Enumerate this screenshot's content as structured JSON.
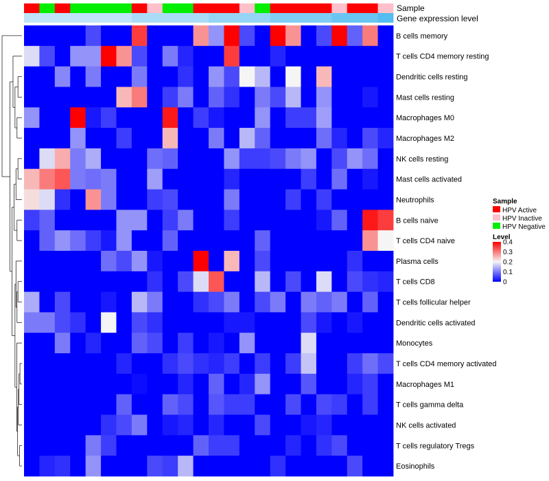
{
  "chart_data": {
    "type": "heatmap",
    "annotation_labels": [
      "Sample",
      "Gene expression level"
    ],
    "rows": [
      "B cells memory",
      "T cells CD4 memory resting",
      "Dendritic cells resting",
      "Mast cells resting",
      "Macrophages M0",
      "Macrophages M2",
      "NK cells resting",
      "Mast cells activated",
      "Neutrophils",
      "B cells naive",
      "T cells CD4 naive",
      "Plasma cells",
      "T cells CD8",
      "T cells follicular helper",
      "Dendritic cells activated",
      "Monocytes",
      "T cells CD4 memory activated",
      "Macrophages M1",
      "T cells gamma delta",
      "NK cells activated",
      "T cells regulatory  Tregs",
      "Eosinophils"
    ],
    "sample_groups": [
      "HPV Active",
      "HPV Negative",
      "HPV Active",
      "HPV Negative",
      "HPV Negative",
      "HPV Negative",
      "HPV Negative",
      "HPV Active",
      "HPV Inactive",
      "HPV Negative",
      "HPV Negative",
      "HPV Active",
      "HPV Active",
      "HPV Active",
      "HPV Inactive",
      "HPV Negative",
      "HPV Active",
      "HPV Active",
      "HPV Active",
      "HPV Active",
      "HPV Inactive",
      "HPV Active",
      "HPV Active",
      "HPV Inactive"
    ],
    "expression_level": [
      0.3,
      0.3,
      0.3,
      0.3,
      0.3,
      0.3,
      0.3,
      0.4,
      0.4,
      0.4,
      0.4,
      0.4,
      0.5,
      0.5,
      0.5,
      0.5,
      0.6,
      0.6,
      0.6,
      0.6,
      0.7,
      0.7,
      0.7,
      0.8
    ],
    "values": [
      [
        0.0,
        0.0,
        0.0,
        0.0,
        0.06,
        0.0,
        0.0,
        0.35,
        0.0,
        0.0,
        0.0,
        0.28,
        0.12,
        0.4,
        0.06,
        0.0,
        0.4,
        0.28,
        0.0,
        0.06,
        0.4,
        0.08,
        0.3,
        0.0
      ],
      [
        0.18,
        0.06,
        0.0,
        0.12,
        0.12,
        0.4,
        0.28,
        0.06,
        0.0,
        0.1,
        0.03,
        0.0,
        0.0,
        0.35,
        0.0,
        0.0,
        0.03,
        0.0,
        0.0,
        0.0,
        0.0,
        0.0,
        0.0,
        0.0
      ],
      [
        0.0,
        0.0,
        0.11,
        0.0,
        0.1,
        0.0,
        0.0,
        0.1,
        0.0,
        0.0,
        0.04,
        0.0,
        0.12,
        0.06,
        0.2,
        0.15,
        0.0,
        0.2,
        0.0,
        0.25,
        0.0,
        0.0,
        0.0,
        0.0
      ],
      [
        0.0,
        0.0,
        0.0,
        0.0,
        0.0,
        0.0,
        0.25,
        0.3,
        0.0,
        0.05,
        0.1,
        0.0,
        0.08,
        0.04,
        0.0,
        0.1,
        0.06,
        0.15,
        0.0,
        0.12,
        0.0,
        0.0,
        0.02,
        0.0
      ],
      [
        0.12,
        0.0,
        0.0,
        0.4,
        0.02,
        0.05,
        0.0,
        0.0,
        0.0,
        0.38,
        0.0,
        0.05,
        0.02,
        0.0,
        0.0,
        0.12,
        0.0,
        0.05,
        0.05,
        0.13,
        0.0,
        0.0,
        0.0,
        0.0
      ],
      [
        0.0,
        0.0,
        0.0,
        0.12,
        0.0,
        0.0,
        0.05,
        0.0,
        0.0,
        0.25,
        0.0,
        0.0,
        0.1,
        0.0,
        0.15,
        0.08,
        0.0,
        0.0,
        0.0,
        0.09,
        0.03,
        0.0,
        0.06,
        0.03
      ],
      [
        0.0,
        0.18,
        0.26,
        0.1,
        0.14,
        0.0,
        0.0,
        0.0,
        0.09,
        0.08,
        0.0,
        0.0,
        0.0,
        0.12,
        0.05,
        0.05,
        0.06,
        0.1,
        0.12,
        0.0,
        0.06,
        0.12,
        0.09,
        0.0
      ],
      [
        0.25,
        0.3,
        0.33,
        0.1,
        0.09,
        0.1,
        0.0,
        0.0,
        0.13,
        0.0,
        0.0,
        0.0,
        0.0,
        0.03,
        0.0,
        0.0,
        0.0,
        0.0,
        0.05,
        0.0,
        0.09,
        0.0,
        0.02,
        0.0
      ],
      [
        0.22,
        0.18,
        0.04,
        0.0,
        0.28,
        0.1,
        0.0,
        0.0,
        0.05,
        0.06,
        0.0,
        0.0,
        0.0,
        0.1,
        0.0,
        0.0,
        0.0,
        0.05,
        0.0,
        0.05,
        0.0,
        0.0,
        0.0,
        0.0
      ],
      [
        0.05,
        0.08,
        0.0,
        0.0,
        0.0,
        0.0,
        0.12,
        0.12,
        0.0,
        0.05,
        0.1,
        0.0,
        0.0,
        0.05,
        0.0,
        0.0,
        0.0,
        0.0,
        0.0,
        0.02,
        0.08,
        0.0,
        0.38,
        0.35
      ],
      [
        0.0,
        0.08,
        0.12,
        0.09,
        0.05,
        0.02,
        0.12,
        0.0,
        0.0,
        0.08,
        0.0,
        0.0,
        0.0,
        0.0,
        0.0,
        0.08,
        0.0,
        0.0,
        0.0,
        0.0,
        0.0,
        0.0,
        0.28,
        0.2
      ],
      [
        0.0,
        0.0,
        0.0,
        0.0,
        0.0,
        0.09,
        0.06,
        0.12,
        0.02,
        0.0,
        0.0,
        0.4,
        0.0,
        0.25,
        0.0,
        0.06,
        0.0,
        0.0,
        0.0,
        0.0,
        0.0,
        0.04,
        0.0,
        0.0
      ],
      [
        0.0,
        0.0,
        0.0,
        0.0,
        0.0,
        0.0,
        0.0,
        0.0,
        0.04,
        0.0,
        0.06,
        0.18,
        0.33,
        0.0,
        0.0,
        0.15,
        0.0,
        0.06,
        0.0,
        0.18,
        0.0,
        0.06,
        0.04,
        0.03
      ],
      [
        0.14,
        0.0,
        0.06,
        0.0,
        0.0,
        0.02,
        0.0,
        0.15,
        0.1,
        0.0,
        0.0,
        0.04,
        0.06,
        0.1,
        0.0,
        0.06,
        0.1,
        0.0,
        0.1,
        0.08,
        0.1,
        0.0,
        0.08,
        0.0
      ],
      [
        0.1,
        0.1,
        0.06,
        0.04,
        0.0,
        0.2,
        0.0,
        0.06,
        0.04,
        0.0,
        0.0,
        0.0,
        0.0,
        0.02,
        0.02,
        0.0,
        0.0,
        0.0,
        0.06,
        0.02,
        0.0,
        0.02,
        0.0,
        0.0
      ],
      [
        0.0,
        0.0,
        0.1,
        0.0,
        0.03,
        0.0,
        0.0,
        0.08,
        0.06,
        0.0,
        0.05,
        0.0,
        0.02,
        0.0,
        0.12,
        0.0,
        0.0,
        0.0,
        0.18,
        0.0,
        0.0,
        0.0,
        0.0,
        0.0
      ],
      [
        0.0,
        0.0,
        0.0,
        0.0,
        0.0,
        0.0,
        0.03,
        0.0,
        0.0,
        0.04,
        0.06,
        0.04,
        0.03,
        0.05,
        0.0,
        0.05,
        0.0,
        0.05,
        0.16,
        0.0,
        0.0,
        0.05,
        0.09,
        0.06
      ],
      [
        0.0,
        0.0,
        0.0,
        0.0,
        0.0,
        0.0,
        0.0,
        0.01,
        0.0,
        0.0,
        0.03,
        0.0,
        0.08,
        0.0,
        0.03,
        0.12,
        0.0,
        0.0,
        0.07,
        0.0,
        0.0,
        0.03,
        0.05,
        0.0
      ],
      [
        0.0,
        0.0,
        0.0,
        0.0,
        0.0,
        0.0,
        0.08,
        0.0,
        0.0,
        0.08,
        0.06,
        0.0,
        0.07,
        0.05,
        0.05,
        0.0,
        0.0,
        0.06,
        0.0,
        0.06,
        0.05,
        0.0,
        0.05,
        0.0
      ],
      [
        0.0,
        0.0,
        0.0,
        0.0,
        0.0,
        0.04,
        0.06,
        0.1,
        0.0,
        0.02,
        0.03,
        0.0,
        0.03,
        0.0,
        0.0,
        0.06,
        0.0,
        0.0,
        0.02,
        0.03,
        0.0,
        0.0,
        0.0,
        0.0
      ],
      [
        0.0,
        0.0,
        0.0,
        0.0,
        0.1,
        0.05,
        0.0,
        0.0,
        0.0,
        0.0,
        0.0,
        0.08,
        0.05,
        0.05,
        0.0,
        0.0,
        0.0,
        0.03,
        0.0,
        0.04,
        0.06,
        0.0,
        0.0,
        0.0
      ],
      [
        0.0,
        0.03,
        0.04,
        0.0,
        0.12,
        0.0,
        0.0,
        0.0,
        0.06,
        0.05,
        0.15,
        0.0,
        0.0,
        0.0,
        0.0,
        0.0,
        0.04,
        0.0,
        0.0,
        0.0,
        0.0,
        0.06,
        0.0,
        0.0
      ]
    ],
    "legend": {
      "sample_title": "Sample",
      "sample_entries": [
        {
          "name": "HPV Active",
          "color": "#ff0000"
        },
        {
          "name": "HPV Inactive",
          "color": "#ffc0cb"
        },
        {
          "name": "HPV Negative",
          "color": "#00ee00"
        }
      ],
      "level_title": "Level",
      "level_ticks": [
        "0.4",
        "0.3",
        "0.2",
        "0.1",
        "0"
      ],
      "level_range": [
        0,
        0.4
      ]
    },
    "colors": {
      "low": "#0000ff",
      "mid": "#f5f5f5",
      "high": "#ff0000",
      "expr_low": "#bfe4f9",
      "expr_high": "#56bdf0"
    }
  }
}
